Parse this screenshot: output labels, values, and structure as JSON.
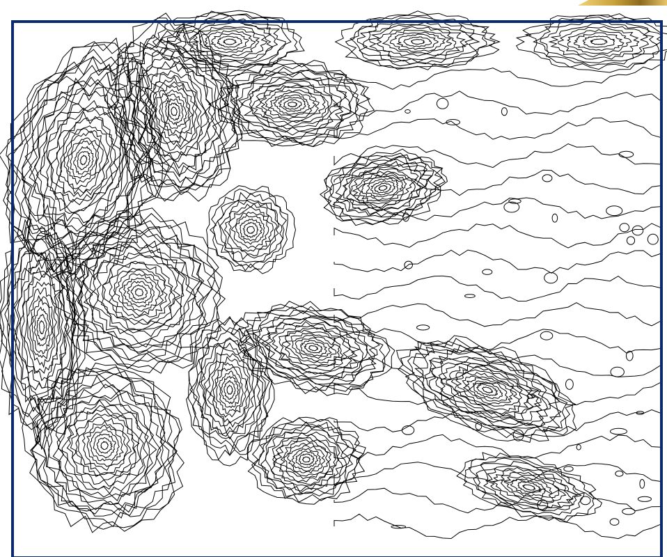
{
  "map": {
    "type": "topographic-contour",
    "contour_color": "#000000",
    "background_color": "#ffffff",
    "frame_color": "#0b2a6e",
    "corner_swatch_colors": [
      "#f2d27a",
      "#c9a23b",
      "#8c6a1f"
    ]
  }
}
